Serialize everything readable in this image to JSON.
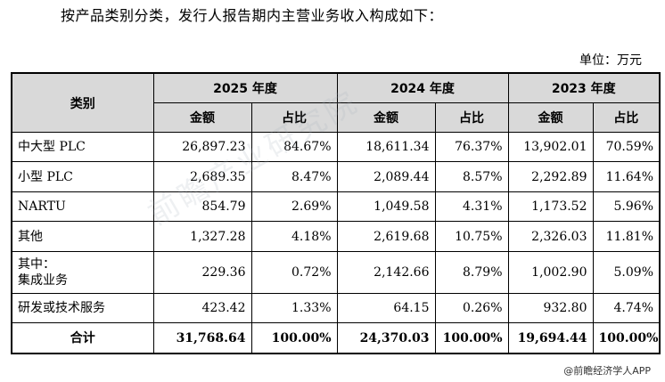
{
  "intro_text": "按产品类别分类，发行人报告期内主营业务收入构成如下：",
  "unit_text": "单位：万元",
  "table": {
    "category_header": "类别",
    "years": [
      "2025 年度",
      "2024 年度",
      "2023 年度"
    ],
    "sub_headers": [
      "金额",
      "占比",
      "金额",
      "占比",
      "金额",
      "占比"
    ],
    "rows": [
      {
        "category": "中大型 PLC",
        "cells": [
          "26,897.23",
          "84.67%",
          "18,611.34",
          "76.37%",
          "13,902.01",
          "70.59%"
        ]
      },
      {
        "category": "小型 PLC",
        "cells": [
          "2,689.35",
          "8.47%",
          "2,089.44",
          "8.57%",
          "2,292.89",
          "11.64%"
        ]
      },
      {
        "category": "NARTU",
        "cells": [
          "854.79",
          "2.69%",
          "1,049.58",
          "4.31%",
          "1,173.52",
          "5.96%"
        ]
      },
      {
        "category": "其他",
        "cells": [
          "1,327.28",
          "4.18%",
          "2,619.68",
          "10.75%",
          "2,326.03",
          "11.81%"
        ]
      },
      {
        "category_line1": "其中：",
        "category_line2": "集成业务",
        "cells": [
          "229.36",
          "0.72%",
          "2,142.66",
          "8.79%",
          "1,002.90",
          "5.09%"
        ]
      },
      {
        "category": "研发或技术服务",
        "cells": [
          "423.42",
          "1.33%",
          "64.15",
          "0.26%",
          "932.80",
          "4.74%"
        ]
      }
    ],
    "total": {
      "category": "合计",
      "cells": [
        "31,768.64",
        "100.00%",
        "24,370.03",
        "100.00%",
        "19,694.44",
        "100.00%"
      ]
    }
  },
  "watermark_text": "前瞻产业研究院",
  "source_text": "@前瞻经济学人APP"
}
